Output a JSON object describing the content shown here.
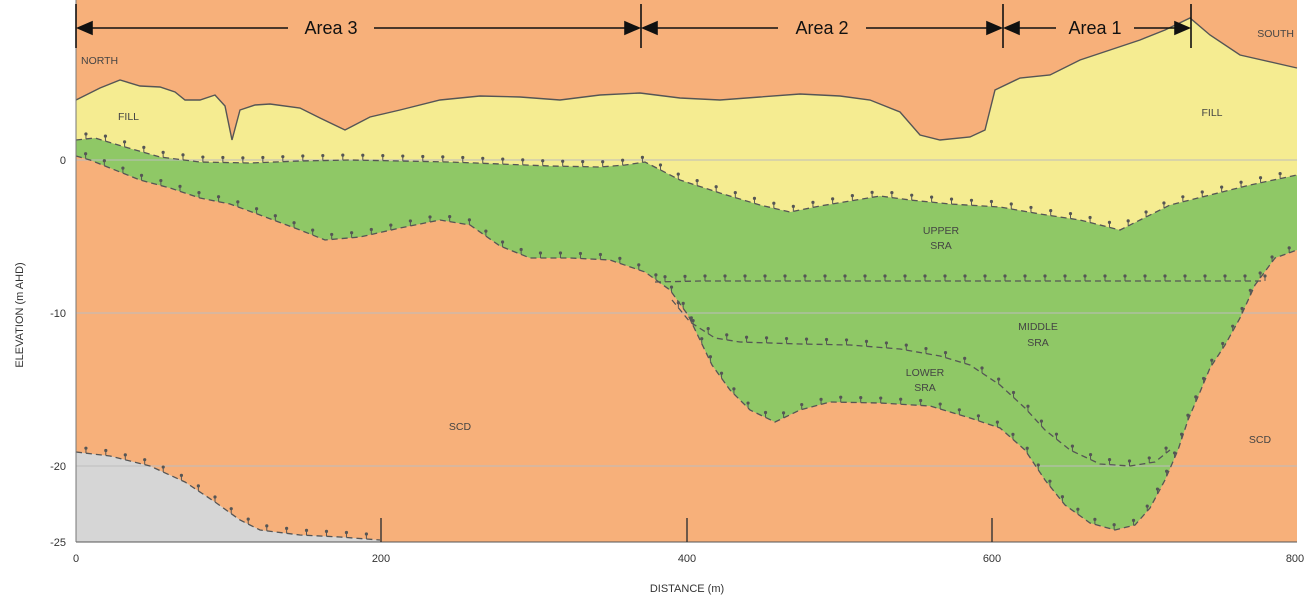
{
  "areas": [
    {
      "label": "Area 3"
    },
    {
      "label": "Area 2"
    },
    {
      "label": "Area 1"
    }
  ],
  "direction": {
    "left": "NORTH",
    "right": "SOUTH"
  },
  "axes": {
    "x_label": "DISTANCE (m)",
    "y_label": "ELEVATION (m AHD)",
    "x_ticks": [
      "0",
      "200",
      "400",
      "600",
      "800"
    ],
    "y_ticks": [
      "0",
      "-10",
      "-20",
      "-25"
    ]
  },
  "units": [
    {
      "id": "fill",
      "lines": [
        "FILL"
      ]
    },
    {
      "id": "upper",
      "lines": [
        "UPPER",
        "SRA"
      ]
    },
    {
      "id": "middle",
      "lines": [
        "MIDDLE",
        "SRA"
      ]
    },
    {
      "id": "lower",
      "lines": [
        "LOWER",
        "SRA"
      ]
    },
    {
      "id": "scd",
      "lines": [
        "SCD"
      ]
    }
  ],
  "colors": {
    "fill": "#f5ec91",
    "sra": "#8fc866",
    "scd": "#f7b07a",
    "bedrock": "#d6d6d6",
    "grid": "#bdbdbd",
    "surface": "#555555"
  }
}
